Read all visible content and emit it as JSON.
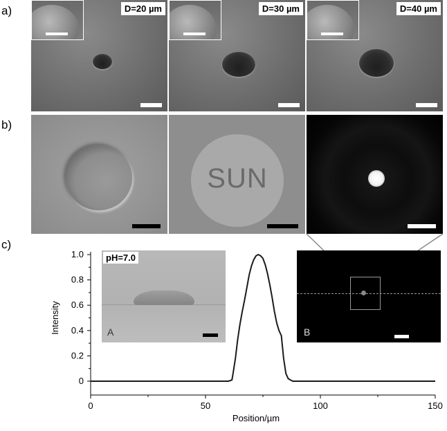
{
  "panels": {
    "a_label": "a)",
    "b_label": "b)",
    "c_label": "c)"
  },
  "panel_a": {
    "tiles": [
      {
        "diameter_label": "D=20 µm"
      },
      {
        "diameter_label": "D=30 µm"
      },
      {
        "diameter_label": "D=40 µm"
      }
    ]
  },
  "panel_b": {
    "middle_text": "SUN"
  },
  "panel_c": {
    "inset_a": {
      "ph_label": "pH=7.0",
      "corner_label": "A"
    },
    "inset_b": {
      "corner_label": "B"
    }
  },
  "colors": {
    "sem_gray": "#6f6f6f",
    "optical_gray": "#8f8f8f",
    "fluorescence_bg": "#000000",
    "curve": "#1a1a1a"
  },
  "chart_data": {
    "type": "line",
    "xlabel": "Position/µm",
    "ylabel": "Intensity",
    "xlim": [
      0,
      150
    ],
    "ylim": [
      0,
      1.0
    ],
    "x_ticks": [
      "0",
      "50",
      "100",
      "150"
    ],
    "y_ticks": [
      "0",
      "0.2",
      "0.4",
      "0.6",
      "0.8",
      "1.0"
    ],
    "series": [
      {
        "x": [
          0,
          60,
          61.5,
          62,
          63,
          64,
          65,
          66,
          67,
          68,
          69,
          70,
          71,
          72,
          73,
          74,
          75,
          76,
          77,
          78,
          79,
          80,
          81,
          82,
          82.5,
          83,
          84,
          85,
          86,
          87,
          88,
          150
        ],
        "y": [
          0,
          0,
          0.01,
          0.06,
          0.18,
          0.33,
          0.45,
          0.55,
          0.64,
          0.74,
          0.84,
          0.91,
          0.96,
          0.99,
          1.0,
          0.99,
          0.97,
          0.92,
          0.85,
          0.76,
          0.66,
          0.55,
          0.46,
          0.4,
          0.38,
          0.36,
          0.18,
          0.06,
          0.02,
          0.01,
          0,
          0
        ]
      }
    ]
  }
}
